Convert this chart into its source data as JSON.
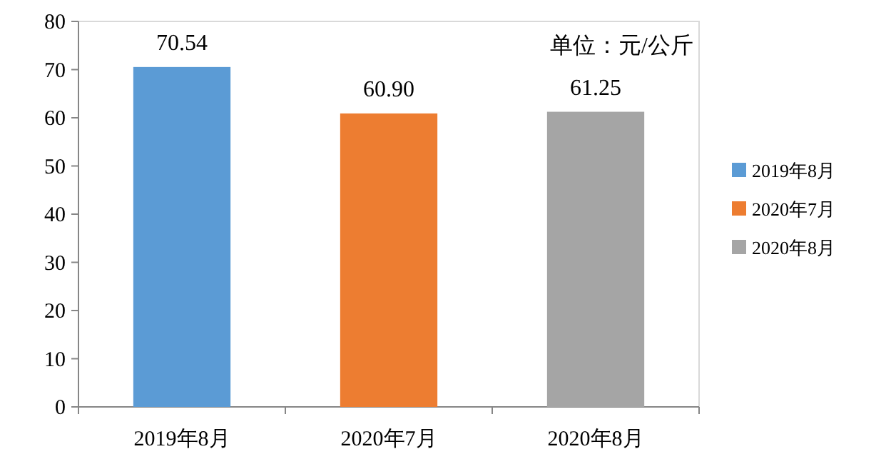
{
  "chart_data": {
    "type": "bar",
    "categories": [
      "2019年8月",
      "2020年7月",
      "2020年8月"
    ],
    "series": [
      {
        "name": "2019年8月",
        "color": "#5b9bd5",
        "values": [
          70.54,
          null,
          null
        ],
        "value_labels": [
          "70.54",
          null,
          null
        ]
      },
      {
        "name": "2020年7月",
        "color": "#ed7d31",
        "values": [
          null,
          60.9,
          null
        ],
        "value_labels": [
          null,
          "60.90",
          null
        ]
      },
      {
        "name": "2020年8月",
        "color": "#a5a5a5",
        "values": [
          null,
          null,
          61.25
        ],
        "value_labels": [
          null,
          null,
          "61.25"
        ]
      }
    ],
    "ylim": [
      0,
      80
    ],
    "yticks": [
      0,
      10,
      20,
      30,
      40,
      50,
      60,
      70,
      80
    ],
    "annotations": [
      "单位：元/公斤"
    ],
    "legend": "right"
  }
}
